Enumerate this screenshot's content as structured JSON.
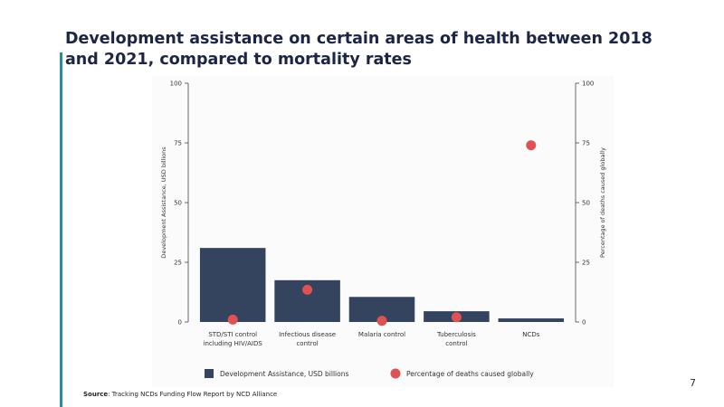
{
  "slide": {
    "title": "Development assistance on certain areas of health between 2018 and 2021, compared to mortality rates",
    "source_label": "Source",
    "source_text": ": Tracking NCDs Funding Flow Report by NCD Alliance",
    "page_number": "7"
  },
  "colors": {
    "bar": "#34435e",
    "dot": "#e05252",
    "accent": "#2a8c95",
    "title": "#1d2547"
  },
  "chart_data": {
    "type": "bar",
    "categories": [
      [
        "STD/STI control",
        "including HIV/AIDS"
      ],
      [
        "Infectious disease",
        "control"
      ],
      [
        "Malaria control"
      ],
      [
        "Tuberculosis",
        "control"
      ],
      [
        "NCDs"
      ]
    ],
    "series": [
      {
        "name": "Development Assistance, USD billions",
        "type": "bar",
        "axis": "left",
        "values": [
          31,
          17.5,
          10.5,
          4.5,
          1.5
        ]
      },
      {
        "name": "Percentage of deaths caused globally",
        "type": "scatter",
        "axis": "right",
        "values": [
          1,
          13.5,
          0.5,
          2,
          74
        ]
      }
    ],
    "ylabel_left": "Development Assistance, USD billions",
    "ylabel_right": "Percentage of deaths caused globally",
    "ylim_left": [
      0,
      100
    ],
    "ylim_right": [
      0,
      100
    ],
    "yticks_left": [
      "0",
      "25",
      "50",
      "75",
      "100"
    ],
    "yticks_right": [
      "0",
      "25",
      "50",
      "75",
      "100"
    ],
    "legend_position": "bottom",
    "grid": false
  }
}
